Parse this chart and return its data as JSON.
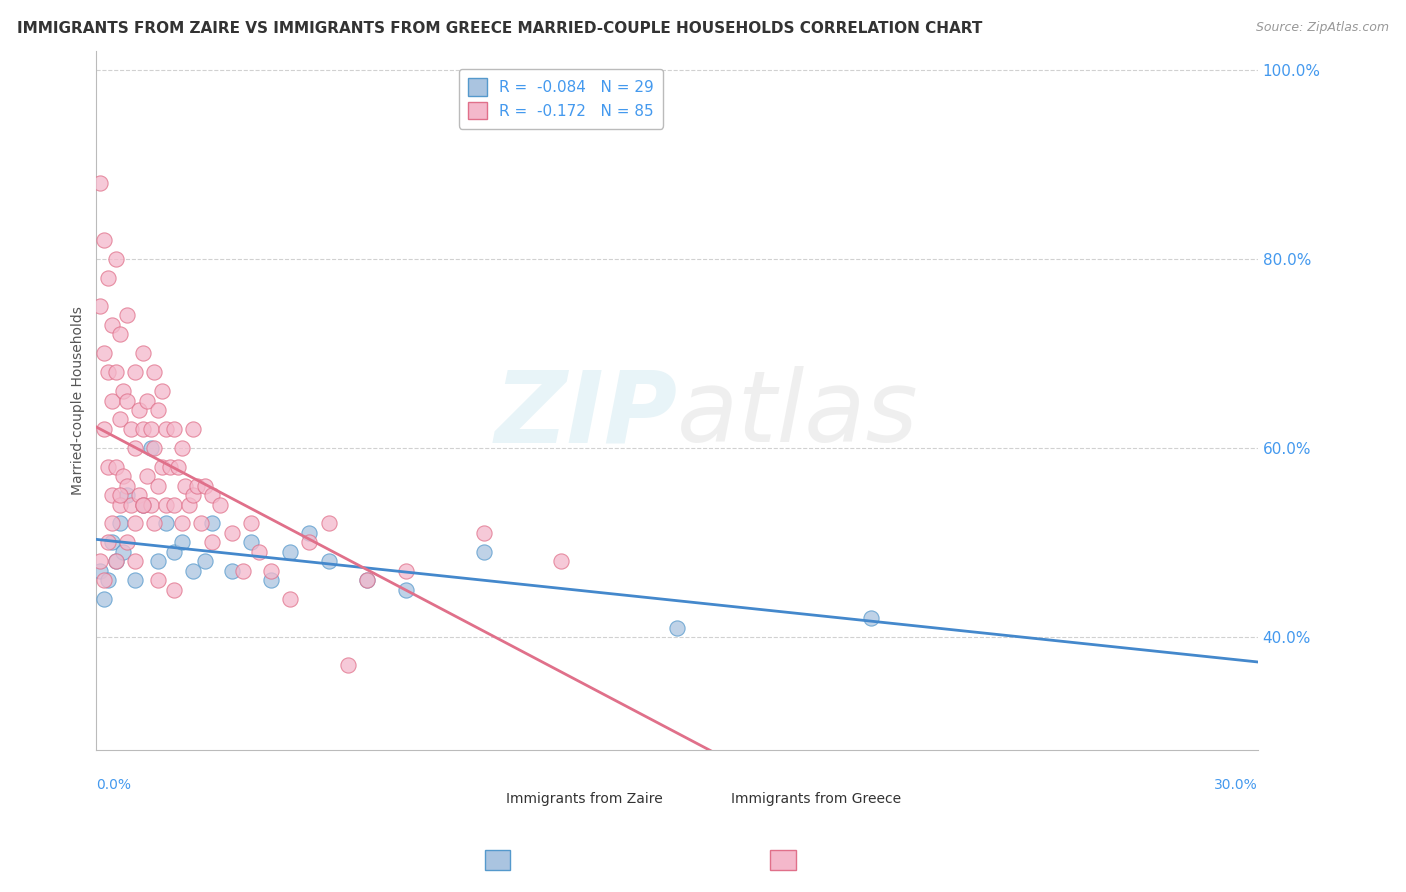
{
  "title": "IMMIGRANTS FROM ZAIRE VS IMMIGRANTS FROM GREECE MARRIED-COUPLE HOUSEHOLDS CORRELATION CHART",
  "source": "Source: ZipAtlas.com",
  "ylabel": "Married-couple Households",
  "series": [
    {
      "label": "Immigrants from Zaire",
      "R": -0.084,
      "N": 29,
      "color": "#aac4e0",
      "edge_color": "#5599cc",
      "line_color": "#4488cc",
      "x": [
        0.001,
        0.002,
        0.003,
        0.004,
        0.005,
        0.006,
        0.007,
        0.008,
        0.01,
        0.012,
        0.014,
        0.016,
        0.018,
        0.02,
        0.022,
        0.025,
        0.028,
        0.03,
        0.035,
        0.04,
        0.045,
        0.05,
        0.055,
        0.06,
        0.07,
        0.08,
        0.1,
        0.15,
        0.2
      ],
      "y": [
        0.47,
        0.44,
        0.46,
        0.5,
        0.48,
        0.52,
        0.49,
        0.55,
        0.46,
        0.54,
        0.6,
        0.48,
        0.52,
        0.49,
        0.5,
        0.47,
        0.48,
        0.52,
        0.47,
        0.5,
        0.46,
        0.49,
        0.51,
        0.48,
        0.46,
        0.45,
        0.49,
        0.41,
        0.42
      ],
      "line_solid": true,
      "line_dashed": false
    },
    {
      "label": "Immigrants from Greece",
      "R": -0.172,
      "N": 85,
      "color": "#f4b8cb",
      "edge_color": "#e0708a",
      "line_color": "#e0708a",
      "x": [
        0.001,
        0.001,
        0.002,
        0.002,
        0.002,
        0.003,
        0.003,
        0.003,
        0.004,
        0.004,
        0.004,
        0.005,
        0.005,
        0.005,
        0.006,
        0.006,
        0.006,
        0.007,
        0.007,
        0.008,
        0.008,
        0.008,
        0.009,
        0.009,
        0.01,
        0.01,
        0.01,
        0.011,
        0.011,
        0.012,
        0.012,
        0.012,
        0.013,
        0.013,
        0.014,
        0.014,
        0.015,
        0.015,
        0.015,
        0.016,
        0.016,
        0.017,
        0.017,
        0.018,
        0.018,
        0.019,
        0.02,
        0.02,
        0.021,
        0.022,
        0.022,
        0.023,
        0.024,
        0.025,
        0.025,
        0.026,
        0.027,
        0.028,
        0.03,
        0.03,
        0.032,
        0.035,
        0.038,
        0.04,
        0.042,
        0.045,
        0.05,
        0.055,
        0.06,
        0.065,
        0.07,
        0.08,
        0.1,
        0.12,
        0.001,
        0.002,
        0.003,
        0.004,
        0.005,
        0.006,
        0.008,
        0.01,
        0.012,
        0.016,
        0.02
      ],
      "y": [
        0.88,
        0.75,
        0.82,
        0.7,
        0.62,
        0.78,
        0.68,
        0.58,
        0.73,
        0.65,
        0.55,
        0.8,
        0.68,
        0.58,
        0.72,
        0.63,
        0.54,
        0.66,
        0.57,
        0.74,
        0.65,
        0.56,
        0.62,
        0.54,
        0.68,
        0.6,
        0.52,
        0.64,
        0.55,
        0.7,
        0.62,
        0.54,
        0.65,
        0.57,
        0.62,
        0.54,
        0.68,
        0.6,
        0.52,
        0.64,
        0.56,
        0.66,
        0.58,
        0.62,
        0.54,
        0.58,
        0.62,
        0.54,
        0.58,
        0.6,
        0.52,
        0.56,
        0.54,
        0.62,
        0.55,
        0.56,
        0.52,
        0.56,
        0.55,
        0.5,
        0.54,
        0.51,
        0.47,
        0.52,
        0.49,
        0.47,
        0.44,
        0.5,
        0.52,
        0.37,
        0.46,
        0.47,
        0.51,
        0.48,
        0.48,
        0.46,
        0.5,
        0.52,
        0.48,
        0.55,
        0.5,
        0.48,
        0.54,
        0.46,
        0.45
      ],
      "line_solid": true,
      "line_dashed": true,
      "line_solid_xmax": 0.17
    }
  ],
  "xlim": [
    0.0,
    0.3
  ],
  "ylim": [
    0.28,
    1.02
  ],
  "yticks": [
    1.0,
    0.8,
    0.6,
    0.4
  ],
  "ytick_labels": [
    "100.0%",
    "80.0%",
    "60.0%",
    "40.0%"
  ],
  "background_color": "#ffffff",
  "grid_color": "#cccccc",
  "title_fontsize": 11,
  "axis_label_fontsize": 10,
  "legend_fontsize": 11,
  "legend_label_blue": "R =  -0.084   N = 29",
  "legend_label_pink": "R =  -0.172   N = 85"
}
